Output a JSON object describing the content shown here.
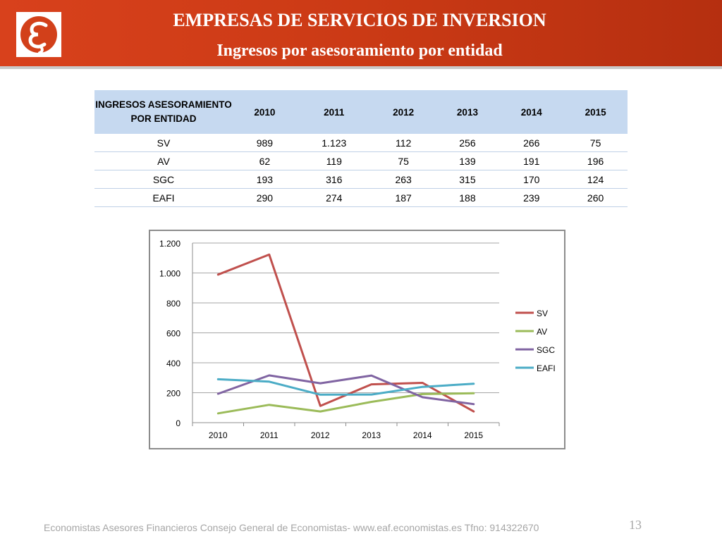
{
  "header": {
    "title": "EMPRESAS DE SERVICIOS DE INVERSION",
    "subtitle": "Ingresos por asesoramiento por entidad",
    "logo_icon": "eaf-logo-icon",
    "accent_color": "#cb3a15"
  },
  "table": {
    "header_label_line1": "INGRESOS ASESORAMIENTO",
    "header_label_line2": "POR ENTIDAD",
    "years": [
      "2010",
      "2011",
      "2012",
      "2013",
      "2014",
      "2015"
    ],
    "rows": [
      {
        "label": "SV",
        "values": [
          "989",
          "1.123",
          "112",
          "256",
          "266",
          "75"
        ]
      },
      {
        "label": "AV",
        "values": [
          "62",
          "119",
          "75",
          "139",
          "191",
          "196"
        ]
      },
      {
        "label": "SGC",
        "values": [
          "193",
          "316",
          "263",
          "315",
          "170",
          "124"
        ]
      },
      {
        "label": "EAFI",
        "values": [
          "290",
          "274",
          "187",
          "188",
          "239",
          "260"
        ]
      }
    ]
  },
  "chart_data": {
    "type": "line",
    "x": [
      "2010",
      "2011",
      "2012",
      "2013",
      "2014",
      "2015"
    ],
    "series": [
      {
        "name": "SV",
        "color": "#c0504d",
        "values": [
          989,
          1123,
          112,
          256,
          266,
          75
        ]
      },
      {
        "name": "AV",
        "color": "#9bbb59",
        "values": [
          62,
          119,
          75,
          139,
          191,
          196
        ]
      },
      {
        "name": "SGC",
        "color": "#8064a2",
        "values": [
          193,
          316,
          263,
          315,
          170,
          124
        ]
      },
      {
        "name": "EAFI",
        "color": "#4bacc6",
        "values": [
          290,
          274,
          187,
          188,
          239,
          260
        ]
      }
    ],
    "ylim": [
      0,
      1200
    ],
    "y_ticks": [
      0,
      200,
      400,
      600,
      800,
      1000,
      1200
    ],
    "y_tick_labels": [
      "0",
      "200",
      "400",
      "600",
      "800",
      "1.000",
      "1.200"
    ],
    "grid": true,
    "legend_position": "right",
    "title": "",
    "xlabel": "",
    "ylabel": ""
  },
  "footer": {
    "text": "Economistas Asesores Financieros Consejo General de Economistas- www.eaf.economistas.es Tfno: 914322670",
    "page_number": "13"
  }
}
